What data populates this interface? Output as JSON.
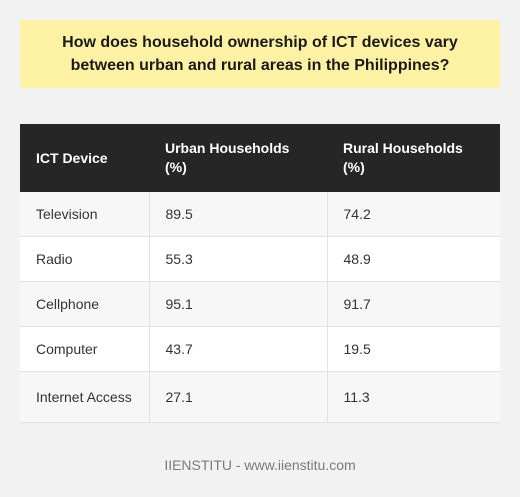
{
  "title": "How does household ownership of ICT devices vary between urban and rural areas in the Philippines?",
  "table": {
    "headers": [
      "ICT Device",
      "Urban Households (%)",
      "Rural Households (%)"
    ],
    "rows": [
      [
        "Television",
        "89.5",
        "74.2"
      ],
      [
        "Radio",
        "55.3",
        "48.9"
      ],
      [
        "Cellphone",
        "95.1",
        "91.7"
      ],
      [
        "Computer",
        "43.7",
        "19.5"
      ],
      [
        "Internet Access",
        "27.1",
        "11.3"
      ]
    ]
  },
  "footer": "IIENSTITU - www.iienstitu.com"
}
